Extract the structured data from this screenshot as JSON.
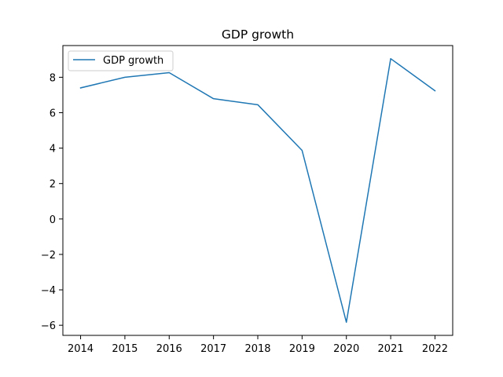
{
  "chart_data": {
    "type": "line",
    "title": "GDP growth",
    "xlabel": "",
    "ylabel": "",
    "categories": [
      "2014",
      "2015",
      "2016",
      "2017",
      "2018",
      "2019",
      "2020",
      "2021",
      "2022"
    ],
    "x": [
      2014,
      2015,
      2016,
      2017,
      2018,
      2019,
      2020,
      2021,
      2022
    ],
    "series": [
      {
        "name": "GDP growth",
        "color": "#1f77b4",
        "values": [
          7.4,
          8.0,
          8.26,
          6.79,
          6.45,
          3.87,
          -5.83,
          9.05,
          7.24
        ]
      }
    ],
    "yticks": [
      -6,
      -4,
      -2,
      0,
      2,
      4,
      6,
      8
    ],
    "ytick_labels": [
      "−6",
      "−4",
      "−2",
      "0",
      "2",
      "4",
      "6",
      "8"
    ],
    "xlim": [
      2013.6,
      2022.4
    ],
    "ylim": [
      -6.57,
      9.79
    ],
    "grid": false,
    "legend": "upper left"
  }
}
